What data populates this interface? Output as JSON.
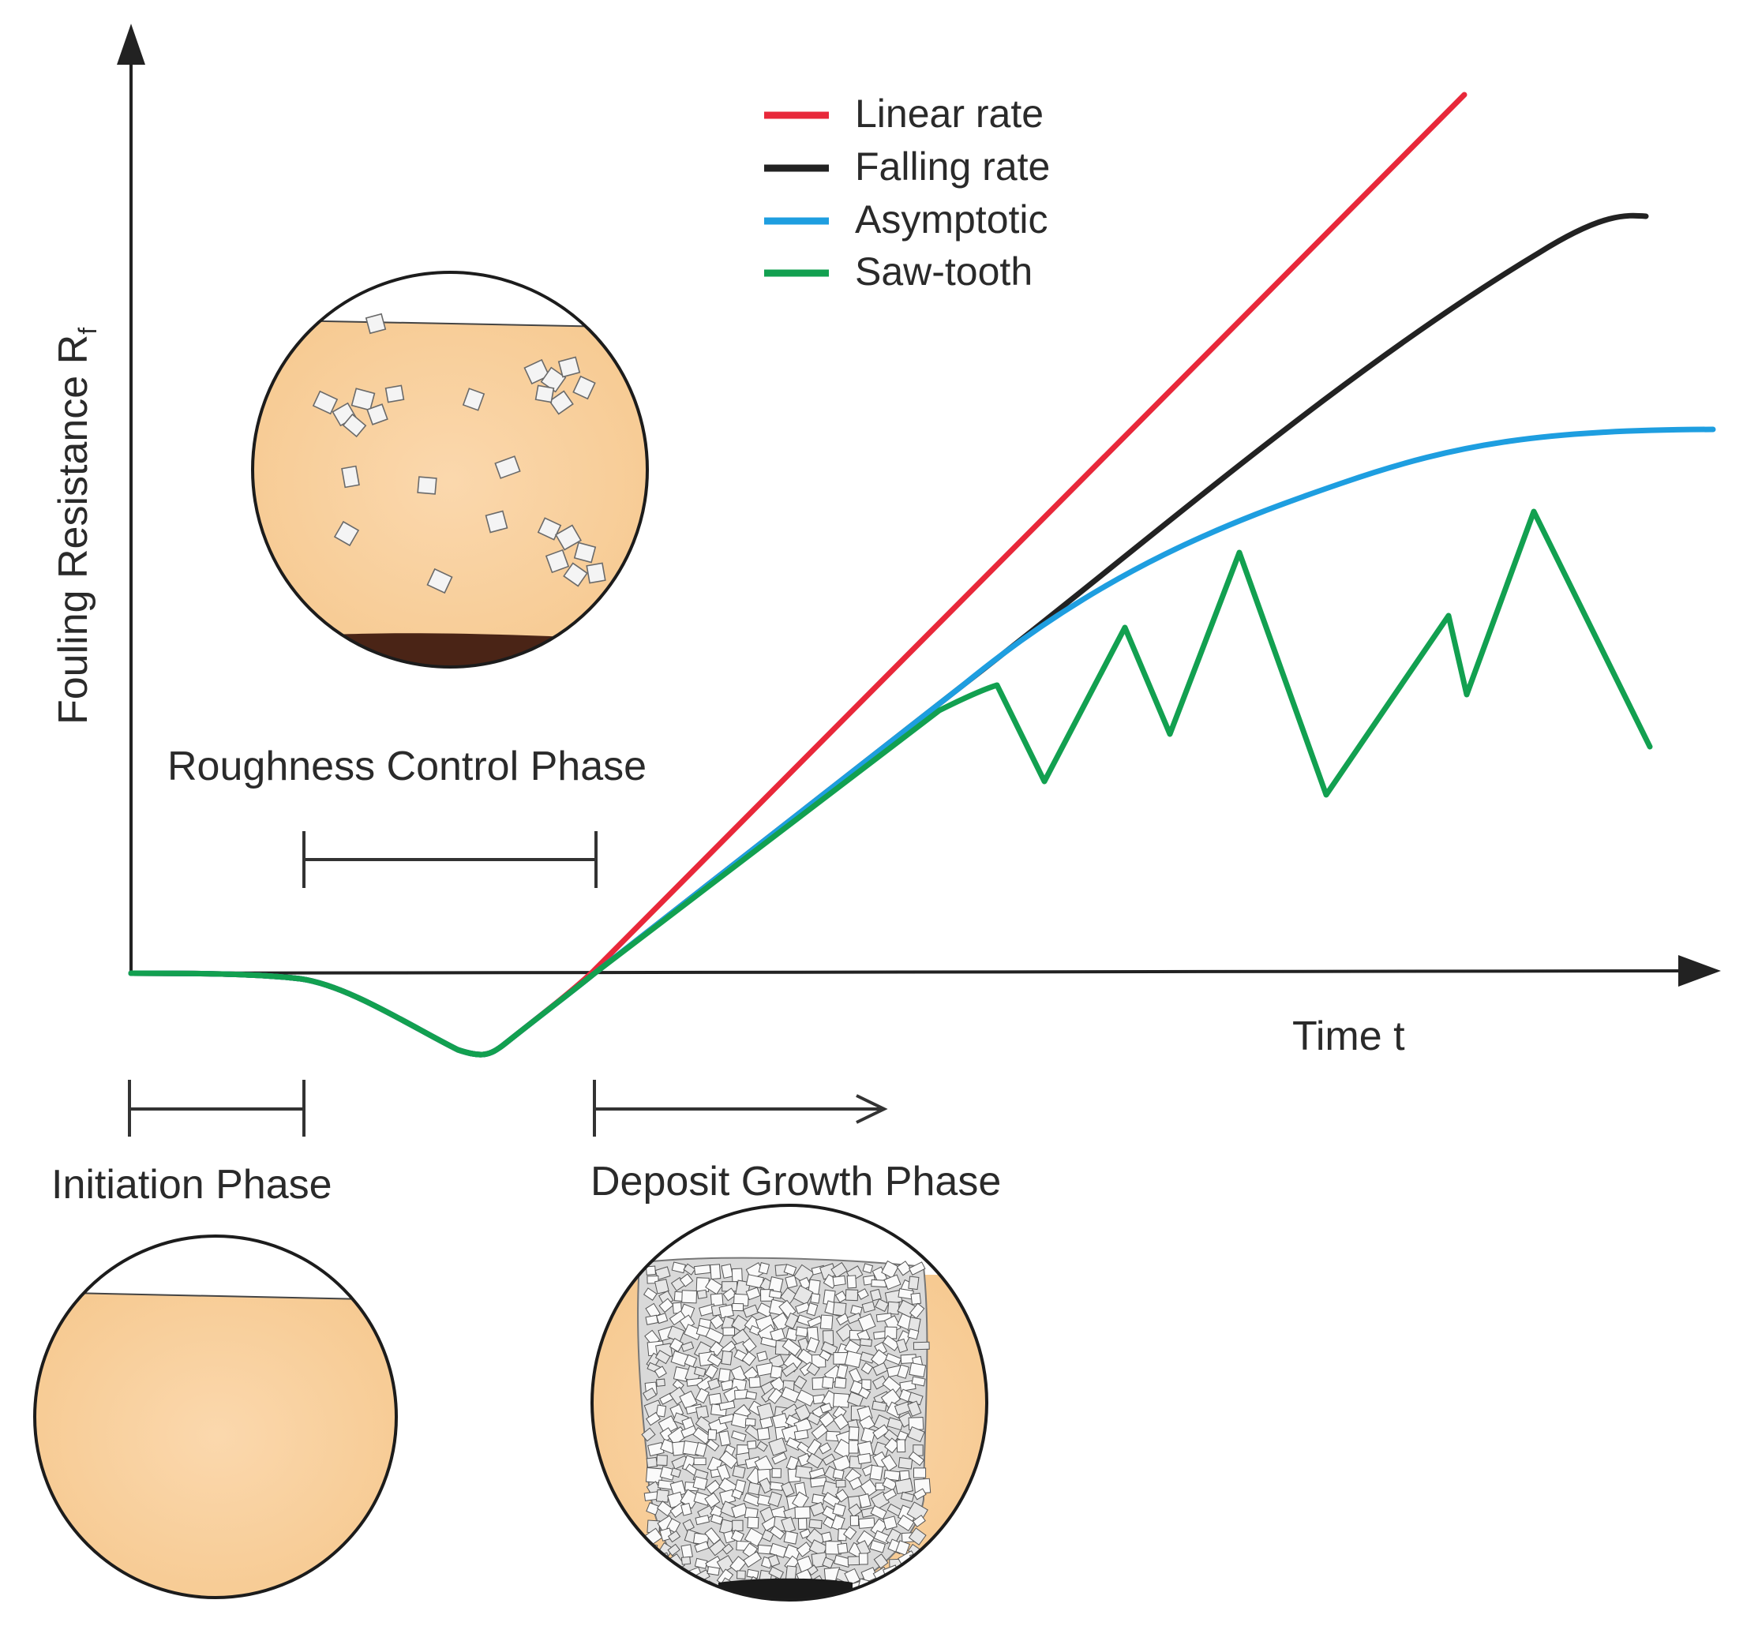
{
  "axes": {
    "y_label": "Fouling Resistance R",
    "y_label_sub": "f",
    "x_label": "Time t"
  },
  "legend": [
    {
      "label": "Linear rate",
      "color": "#e8283a"
    },
    {
      "label": "Falling rate",
      "color": "#222222"
    },
    {
      "label": "Asymptotic",
      "color": "#1e9ee0"
    },
    {
      "label": "Saw-tooth",
      "color": "#12a050"
    }
  ],
  "phases": {
    "initiation": "Initiation Phase",
    "roughness": "Roughness Control Phase",
    "growth": "Deposit Growth Phase"
  },
  "colors": {
    "fluid": "#f8cfa0",
    "deposit_dark": "#4a2416",
    "base_dark": "#1a1a1a"
  },
  "insets": [
    {
      "phase": "Initiation Phase",
      "content": "clean surface"
    },
    {
      "phase": "Roughness Control Phase",
      "content": "scattered crystals"
    },
    {
      "phase": "Deposit Growth Phase",
      "content": "dense crystal deposit"
    }
  ]
}
